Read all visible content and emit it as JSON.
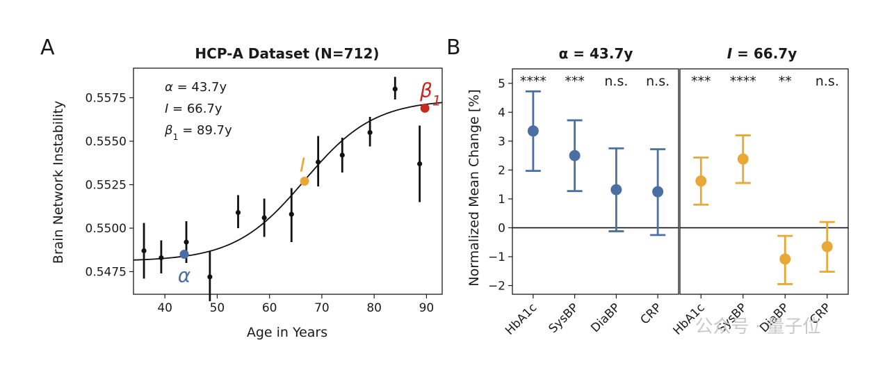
{
  "panels": {
    "a_letter": "A",
    "b_letter": "B"
  },
  "watermark": "公众号 · 量子位",
  "chart_data": [
    {
      "type": "scatter",
      "title": "HCP-A Dataset (N=712)",
      "xlabel": "Age in Years",
      "ylabel": "Brain Network Instability",
      "xlim": [
        34,
        93
      ],
      "ylim": [
        0.5462,
        0.5592
      ],
      "xticks": [
        "40",
        "50",
        "60",
        "70",
        "80",
        "90"
      ],
      "yticks": [
        "0.5475",
        "0.5500",
        "0.5525",
        "0.5550",
        "0.5575"
      ],
      "annotations": [
        {
          "sym": "α",
          "rest": " = 43.7y"
        },
        {
          "sym": "I",
          "rest": " = 66.7y"
        },
        {
          "sym": "β",
          "sub": "1",
          "rest": " = 89.7y"
        }
      ],
      "points": [
        {
          "x": 36,
          "y": 0.5487,
          "lo": 0.5471,
          "hi": 0.5503
        },
        {
          "x": 39.3,
          "y": 0.5483,
          "lo": 0.5474,
          "hi": 0.5493
        },
        {
          "x": 44.1,
          "y": 0.5492,
          "lo": 0.548,
          "hi": 0.5504
        },
        {
          "x": 48.6,
          "y": 0.5472,
          "lo": 0.5458,
          "hi": 0.5487
        },
        {
          "x": 54.0,
          "y": 0.5509,
          "lo": 0.55,
          "hi": 0.5519
        },
        {
          "x": 59.0,
          "y": 0.5506,
          "lo": 0.5495,
          "hi": 0.5517
        },
        {
          "x": 64.2,
          "y": 0.5508,
          "lo": 0.5492,
          "hi": 0.5523
        },
        {
          "x": 69.3,
          "y": 0.5538,
          "lo": 0.5524,
          "hi": 0.5553
        },
        {
          "x": 73.9,
          "y": 0.5542,
          "lo": 0.5532,
          "hi": 0.5552
        },
        {
          "x": 79.2,
          "y": 0.5555,
          "lo": 0.5547,
          "hi": 0.5564
        },
        {
          "x": 84.0,
          "y": 0.558,
          "lo": 0.5574,
          "hi": 0.5587
        },
        {
          "x": 88.7,
          "y": 0.5537,
          "lo": 0.5515,
          "hi": 0.5559
        }
      ],
      "markers": [
        {
          "label": "α",
          "x": 43.7,
          "y": 0.5485,
          "color": "#4a6fa5"
        },
        {
          "label": "I",
          "x": 66.7,
          "y": 0.5527,
          "color": "#e8a838"
        },
        {
          "label": "β",
          "sub": "1",
          "x": 89.7,
          "y": 0.5569,
          "color": "#c8281e"
        }
      ],
      "fit_curve": {
        "baseline": 0.5481,
        "top": 0.5574,
        "midpoint": 66.7,
        "slope": 0.15
      }
    },
    {
      "type": "errorbar",
      "title": "α = 43.7y",
      "ylabel": "Normalized Mean Change [%]",
      "ylim": [
        -2.3,
        5.5
      ],
      "yticks": [
        "5",
        "4",
        "3",
        "2",
        "1",
        "0",
        "−1",
        "−2"
      ],
      "categories": [
        "HbA1c",
        "SysBP",
        "DiaBP",
        "CRP"
      ],
      "values": [
        3.35,
        2.5,
        1.32,
        1.25
      ],
      "lower": [
        1.97,
        1.27,
        -0.12,
        -0.25
      ],
      "upper": [
        4.72,
        3.72,
        2.75,
        2.72
      ],
      "significance": [
        "****",
        "***",
        "n.s.",
        "n.s."
      ],
      "color": "#4a6fa5"
    },
    {
      "type": "errorbar",
      "title": "I = 66.7y",
      "ylim": [
        -2.3,
        5.5
      ],
      "categories": [
        "HbA1c",
        "SysBP",
        "DiaBP",
        "CRP"
      ],
      "values": [
        1.62,
        2.38,
        -1.08,
        -0.65
      ],
      "lower": [
        0.8,
        1.55,
        -1.95,
        -1.52
      ],
      "upper": [
        2.43,
        3.2,
        -0.28,
        0.2
      ],
      "significance": [
        "***",
        "****",
        "**",
        "n.s."
      ],
      "color": "#e8a838"
    }
  ]
}
